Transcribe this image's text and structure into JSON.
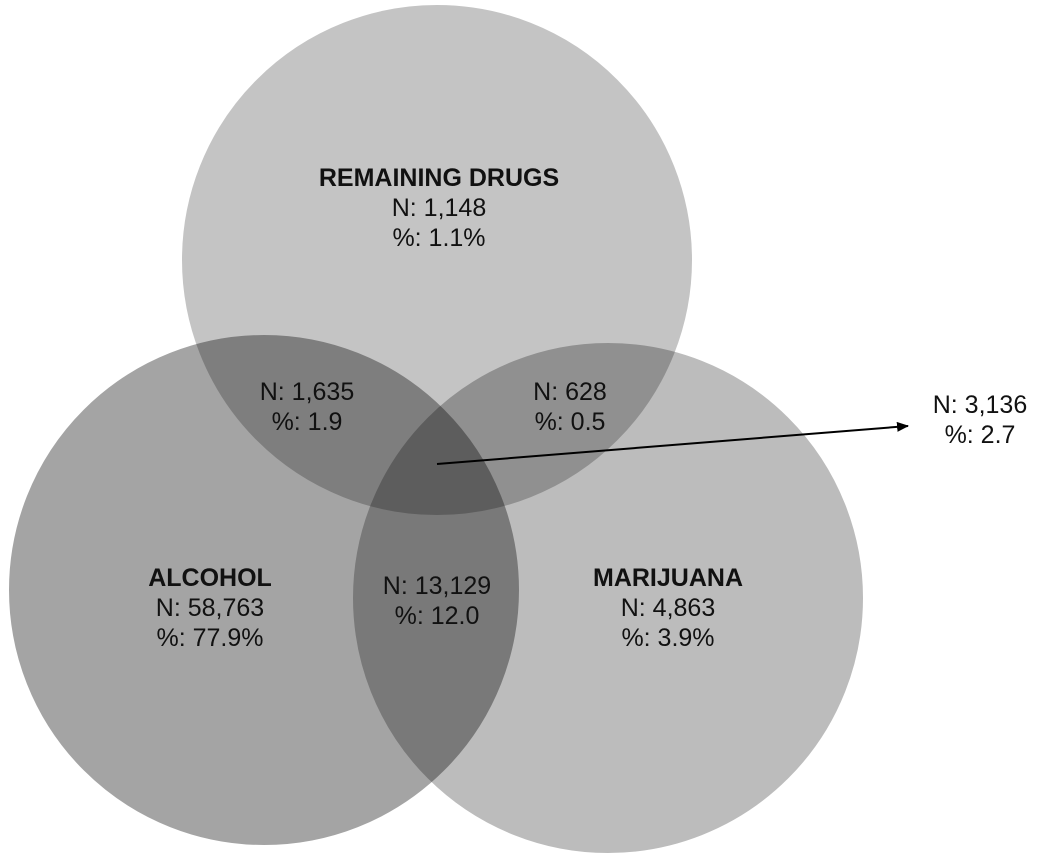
{
  "colors": {
    "remaining_drugs_fill": "#c4c4c4",
    "alcohol_fill": "#a4a4a4",
    "marijuana_fill": "#bcbcbc",
    "outline": "#ffffff",
    "arrow": "#000000"
  },
  "sets": {
    "remaining_drugs": {
      "title": "REMAINING DRUGS",
      "n": "N: 1,148",
      "pct": "%: 1.1%"
    },
    "alcohol": {
      "title": "ALCOHOL",
      "n": "N: 58,763",
      "pct": "%: 77.9%"
    },
    "marijuana": {
      "title": "MARIJUANA",
      "n": "N: 4,863",
      "pct": "%: 3.9%"
    }
  },
  "intersections": {
    "alcohol_remaining": {
      "n": "N: 1,635",
      "pct": "%: 1.9"
    },
    "remaining_marijuana": {
      "n": "N: 628",
      "pct": "%: 0.5"
    },
    "alcohol_marijuana": {
      "n": "N: 13,129",
      "pct": "%: 12.0"
    },
    "all_three": {
      "n": "N: 3,136",
      "pct": "%: 2.7"
    }
  }
}
